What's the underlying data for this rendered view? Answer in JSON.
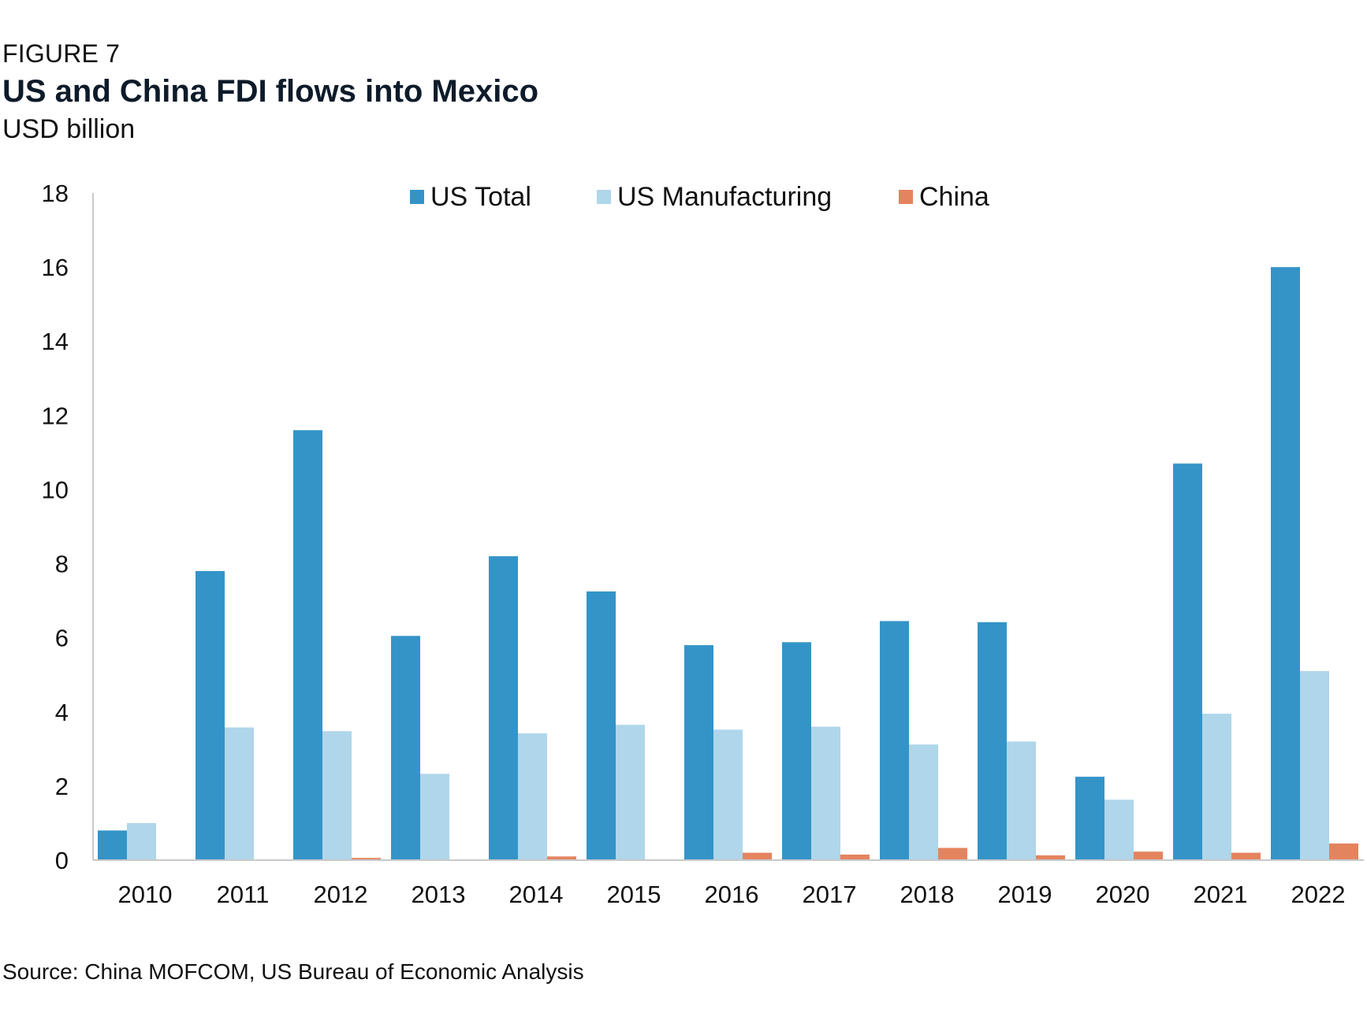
{
  "figure_label": "FIGURE 7",
  "title": "US and China FDI flows into Mexico",
  "subtitle": "USD billion",
  "source": "Source: China MOFCOM, US Bureau of Economic Analysis",
  "chart_data": {
    "type": "bar",
    "title": "US and China FDI flows into Mexico",
    "subtitle": "USD billion",
    "xlabel": "",
    "ylabel": "",
    "ylim": [
      0,
      18
    ],
    "yticks": [
      0,
      2,
      4,
      6,
      8,
      10,
      12,
      14,
      16,
      18
    ],
    "grid": false,
    "legend_position": "top-center",
    "categories": [
      "2010",
      "2011",
      "2012",
      "2013",
      "2014",
      "2015",
      "2016",
      "2017",
      "2018",
      "2019",
      "2020",
      "2021",
      "2022"
    ],
    "series": [
      {
        "name": "US Total",
        "color": "#3494c8",
        "values": [
          0.8,
          7.8,
          11.6,
          6.05,
          8.2,
          7.25,
          5.8,
          5.88,
          6.45,
          6.42,
          2.25,
          10.7,
          16.0
        ]
      },
      {
        "name": "US Manufacturing",
        "color": "#afd6ea",
        "values": [
          1.0,
          3.58,
          3.48,
          2.33,
          3.42,
          3.65,
          3.52,
          3.6,
          3.12,
          3.2,
          1.63,
          3.95,
          5.1
        ]
      },
      {
        "name": "China",
        "color": "#e4845f",
        "values": [
          0.0,
          0.0,
          0.06,
          0.0,
          0.1,
          0.0,
          0.2,
          0.15,
          0.33,
          0.13,
          0.23,
          0.2,
          0.45
        ]
      }
    ]
  }
}
